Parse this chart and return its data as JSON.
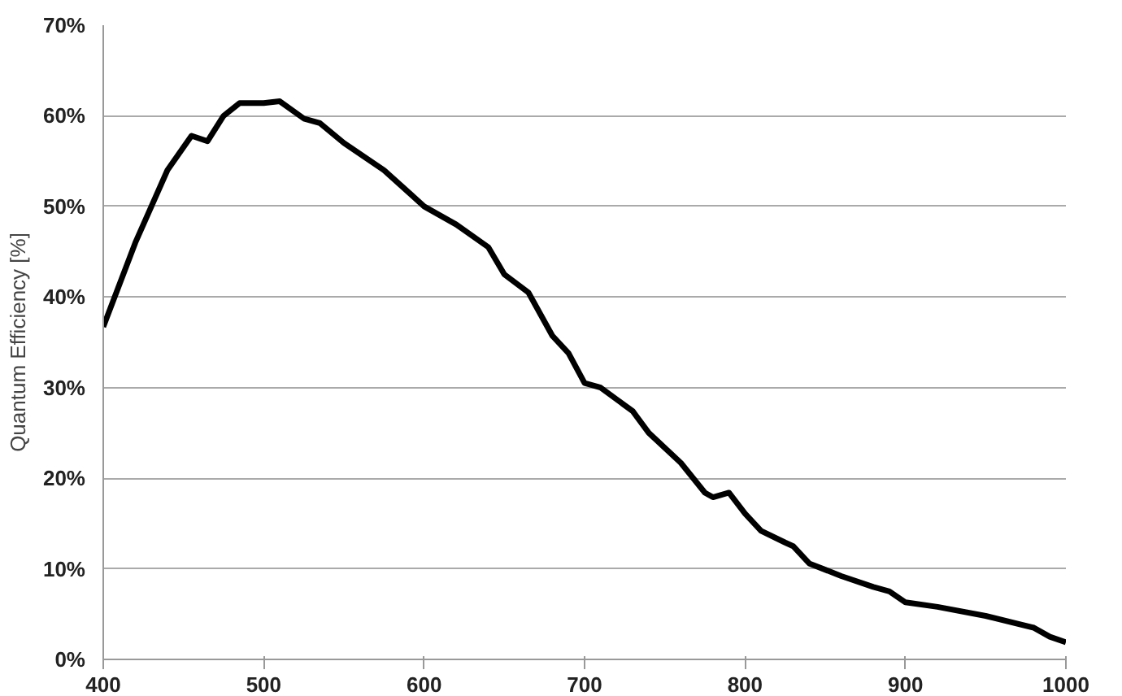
{
  "chart_data": {
    "type": "line",
    "ylabel": "Quantum Efficiency [%]",
    "x": [
      400,
      420,
      440,
      455,
      465,
      475,
      485,
      500,
      510,
      525,
      535,
      550,
      575,
      600,
      620,
      640,
      650,
      665,
      680,
      690,
      700,
      710,
      730,
      740,
      760,
      775,
      780,
      790,
      800,
      810,
      825,
      830,
      840,
      860,
      880,
      890,
      900,
      920,
      950,
      980,
      990,
      1000
    ],
    "series": [
      {
        "color": "#000000",
        "values": [
          36.7,
          46,
          54,
          57.8,
          57.2,
          60,
          61.4,
          61.4,
          61.6,
          59.7,
          59.2,
          57,
          54,
          50,
          48,
          45.5,
          42.5,
          40.5,
          35.7,
          33.8,
          30.5,
          30,
          27.4,
          25,
          21.7,
          18.4,
          17.9,
          18.4,
          16.1,
          14.2,
          12.9,
          12.5,
          10.6,
          9.2,
          8,
          7.5,
          6.3,
          5.8,
          4.8,
          3.5,
          2.5,
          1.9
        ]
      }
    ],
    "xlim": [
      400,
      1000
    ],
    "xticks": [
      400,
      500,
      600,
      700,
      800,
      900,
      1000
    ],
    "ylim": [
      0,
      70
    ],
    "yticks": [
      {
        "value": 0,
        "label": "0%"
      },
      {
        "value": 10,
        "label": "10%"
      },
      {
        "value": 20,
        "label": "20%"
      },
      {
        "value": 30,
        "label": "30%"
      },
      {
        "value": 40,
        "label": "40%"
      },
      {
        "value": 50,
        "label": "50%"
      },
      {
        "value": 60,
        "label": "60%"
      },
      {
        "value": 70,
        "label": "70%"
      }
    ],
    "grid": "y",
    "marker": "none",
    "line_style": "solid"
  }
}
